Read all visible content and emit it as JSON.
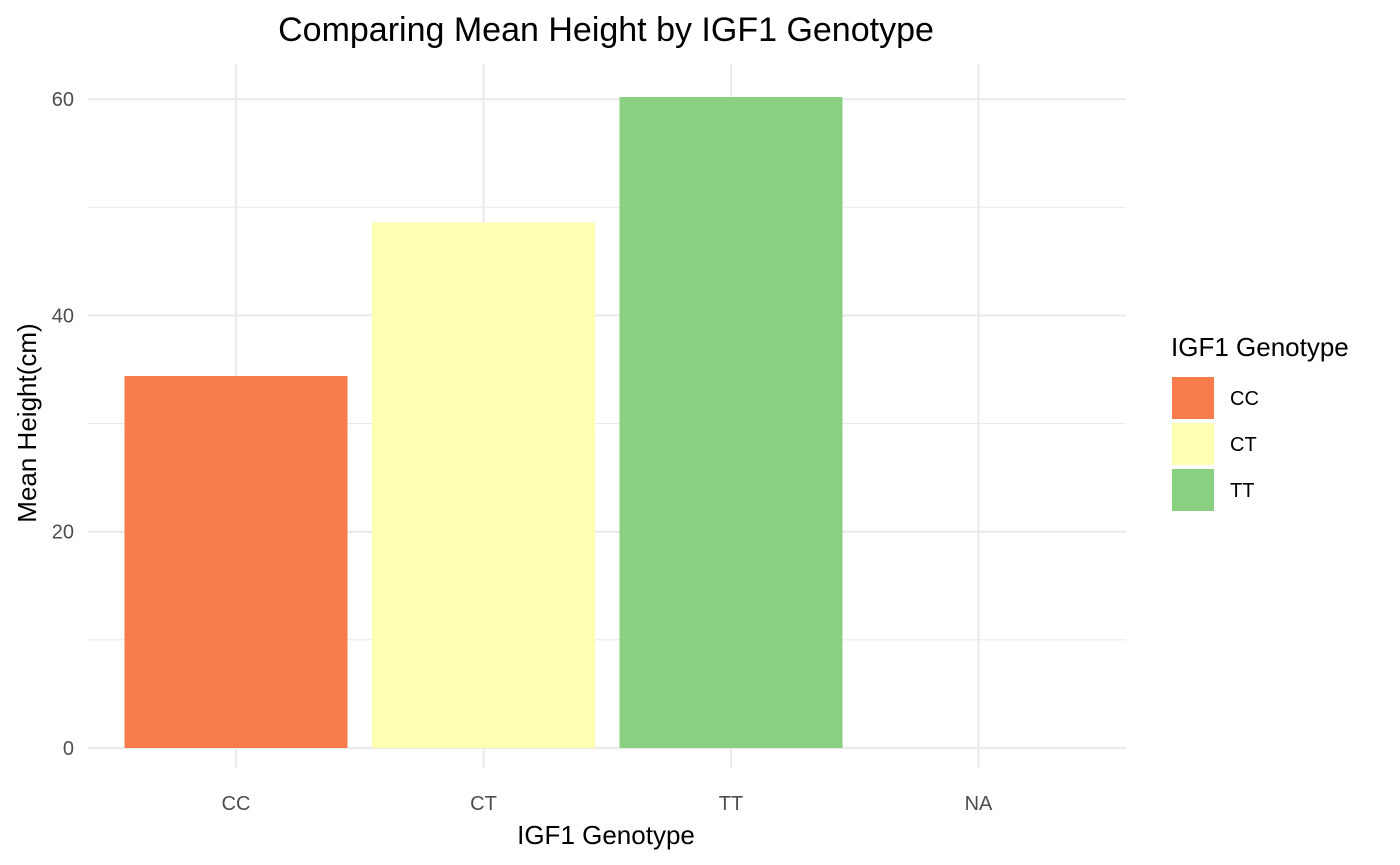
{
  "chart_data": {
    "type": "bar",
    "title": "Comparing Mean Height by IGF1 Genotype",
    "xlabel": "IGF1 Genotype",
    "ylabel": "Mean Height(cm)",
    "categories": [
      "CC",
      "CT",
      "TT",
      "NA"
    ],
    "values": [
      34.4,
      48.6,
      60.2,
      null
    ],
    "colors": [
      "#f87b4b",
      "#feffb0",
      "#89d081",
      null
    ],
    "ylim": [
      0,
      60.2
    ],
    "yticks": [
      0,
      20,
      40,
      60
    ],
    "grid": true,
    "legend": {
      "title": "IGF1 Genotype",
      "placement": "right",
      "entries": [
        {
          "label": "CC",
          "color": "#f87b4b"
        },
        {
          "label": "CT",
          "color": "#feffb0"
        },
        {
          "label": "TT",
          "color": "#89d081"
        }
      ]
    }
  }
}
